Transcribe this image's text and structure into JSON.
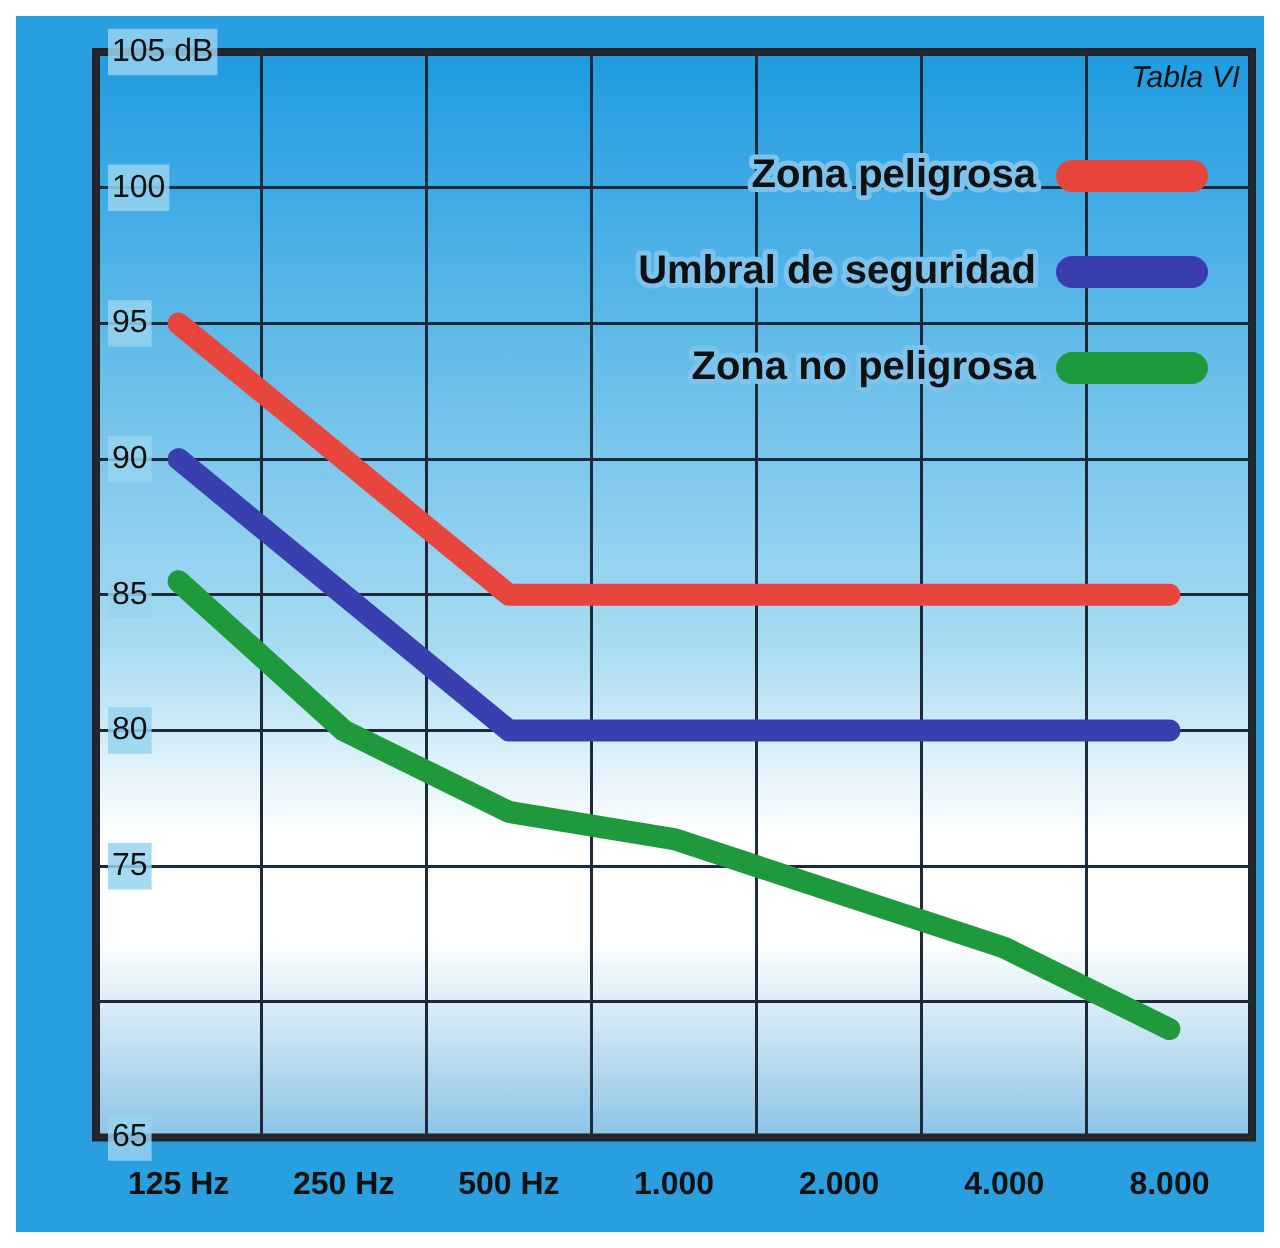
{
  "chart_data": {
    "type": "line",
    "categories": [
      "125 Hz",
      "250 Hz",
      "500 Hz",
      "1.000",
      "2.000",
      "4.000",
      "8.000"
    ],
    "series": [
      {
        "name": "Zona peligrosa",
        "color": "#e8453c",
        "values": [
          95,
          90,
          85,
          85,
          85,
          85,
          85
        ]
      },
      {
        "name": "Umbral de seguridad",
        "color": "#3a3fb0",
        "values": [
          90,
          85,
          80,
          80,
          80,
          80,
          80
        ]
      },
      {
        "name": "Zona no peligrosa",
        "color": "#1e9a3c",
        "values": [
          85.5,
          80,
          77,
          76,
          74,
          72,
          69
        ]
      }
    ],
    "ylim": [
      65,
      105
    ],
    "yticks": [
      {
        "value": 105,
        "label": "105 dB"
      },
      100,
      95,
      90,
      85,
      80,
      75,
      {
        "value": 70,
        "label": null
      },
      65
    ],
    "grid": true,
    "legend": "top right",
    "marker": "none",
    "line_style": "solid",
    "annotations": [
      "Tabla VI"
    ]
  }
}
